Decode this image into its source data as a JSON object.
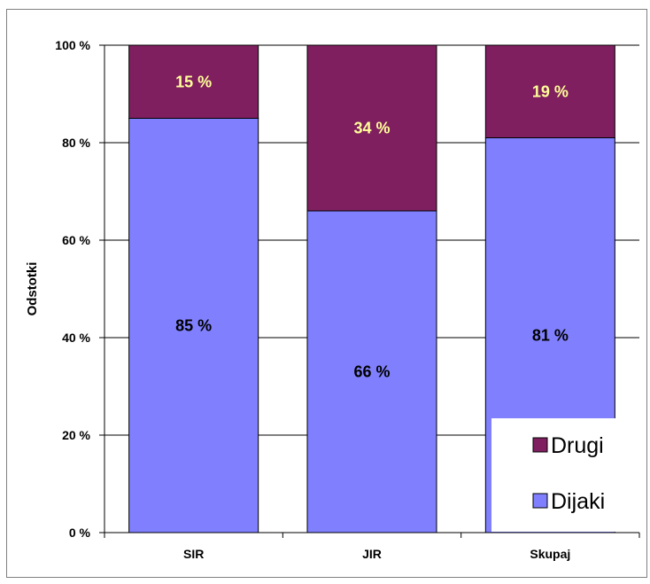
{
  "chart_data": {
    "type": "bar",
    "stacked": true,
    "categories": [
      "SIR",
      "JIR",
      "Skupaj"
    ],
    "series": [
      {
        "name": "Dijaki",
        "values": [
          85,
          66,
          81
        ],
        "labels": [
          "85 %",
          "66 %",
          "81 %"
        ],
        "color": "#8080ff",
        "label_color": "#000000"
      },
      {
        "name": "Drugi",
        "values": [
          15,
          34,
          19
        ],
        "labels": [
          "15 %",
          "34 %",
          "19 %"
        ],
        "color": "#7f1f5f",
        "label_color": "#ffff99"
      }
    ],
    "ylabel": "Odstotki",
    "ylim": [
      0,
      100
    ],
    "yticks": [
      0,
      20,
      40,
      60,
      80,
      100
    ],
    "ytick_labels": [
      "0 %",
      "20 %",
      "40 %",
      "60 %",
      "80 %",
      "100 %"
    ],
    "grid": true,
    "legend_position": "bottom-right",
    "legend_order": [
      "Drugi",
      "Dijaki"
    ]
  }
}
